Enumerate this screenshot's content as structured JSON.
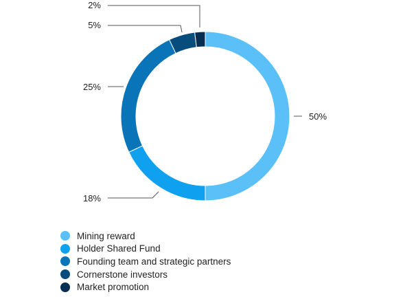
{
  "chart_data": {
    "type": "pie",
    "variant": "donut",
    "title": "",
    "categories": [
      "Mining reward",
      "Holder Shared Fund",
      "Founding team and strategic partners",
      "Cornerstone investors",
      "Market promotion"
    ],
    "values": [
      50,
      18,
      25,
      5,
      2
    ],
    "value_labels": [
      "50%",
      "18%",
      "25%",
      "5%",
      "2%"
    ],
    "colors": [
      "#5bc0f8",
      "#10a0f0",
      "#0a74b8",
      "#064c7c",
      "#052e52"
    ],
    "legend_position": "bottom-left"
  }
}
